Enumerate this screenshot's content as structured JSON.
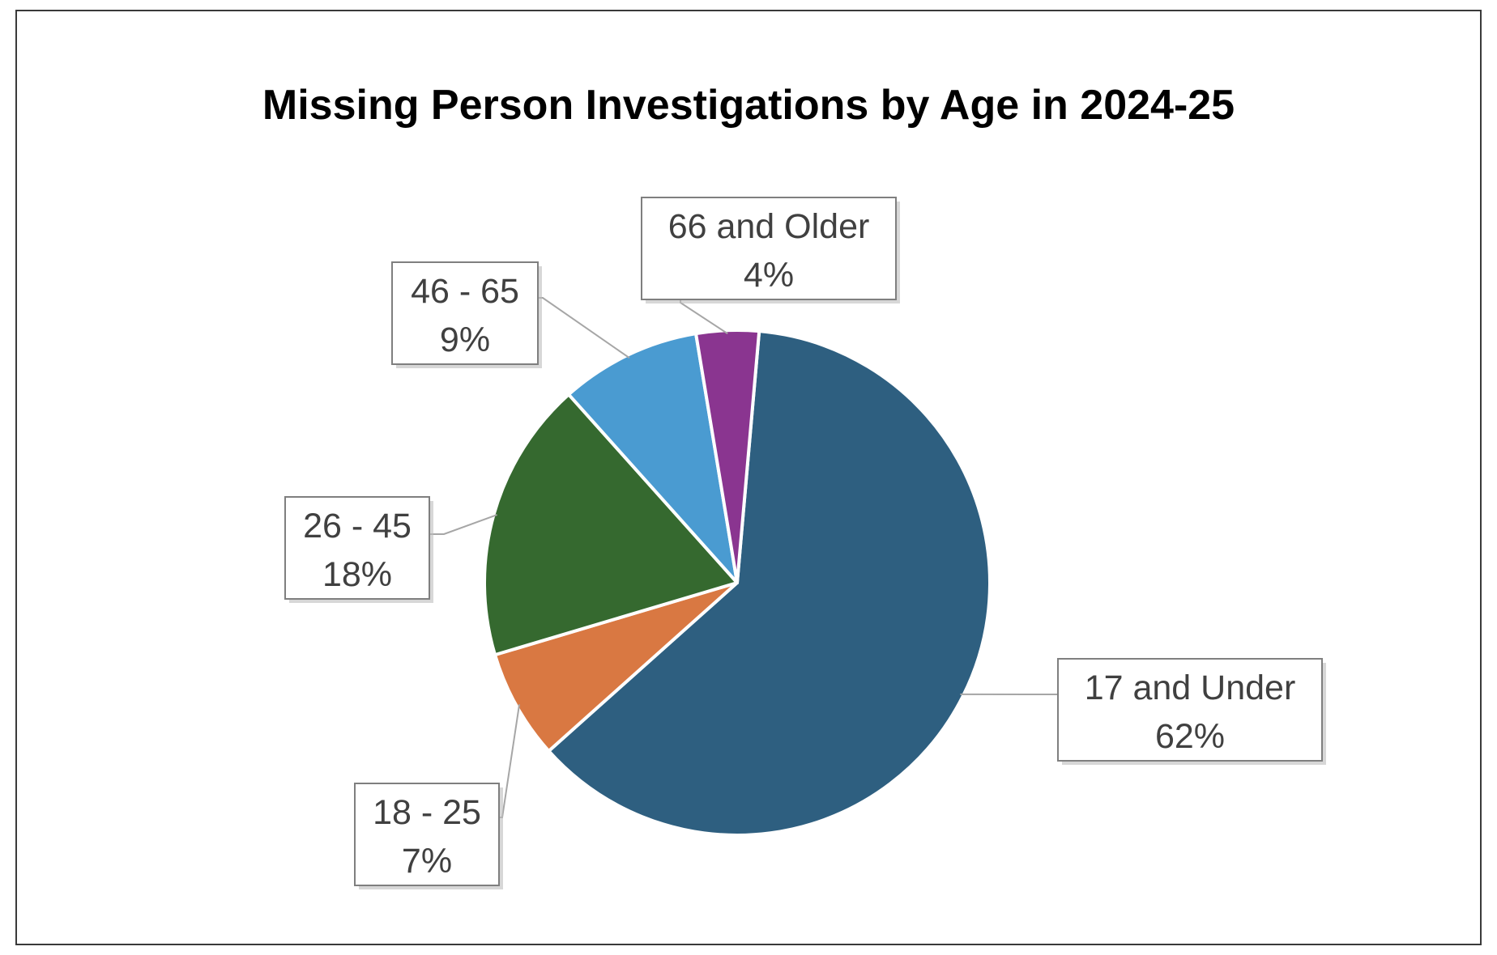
{
  "chart_data": {
    "type": "pie",
    "title": "Missing Person Investigations by Age in 2024-25",
    "slices": [
      {
        "label": "17 and Under",
        "value": 62,
        "value_label": "62%",
        "color": "#2e5f80"
      },
      {
        "label": "18 - 25",
        "value": 7,
        "value_label": "7%",
        "color": "#d97842"
      },
      {
        "label": "26 - 45",
        "value": 18,
        "value_label": "18%",
        "color": "#35692f"
      },
      {
        "label": "46 - 65",
        "value": 9,
        "value_label": "9%",
        "color": "#4a9bd1"
      },
      {
        "label": "66 and Older",
        "value": 4,
        "value_label": "4%",
        "color": "#8a3590"
      }
    ],
    "start_angle": "top, slightly right of vertical",
    "direction": "clockwise",
    "legend": "none",
    "data_labels": "boxed callouts with leader lines"
  }
}
